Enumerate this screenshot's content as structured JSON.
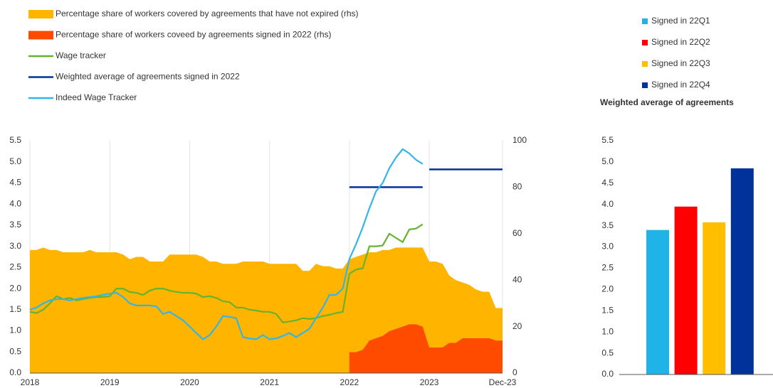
{
  "chart_data": [
    {
      "type": "line",
      "xlim": [
        2018,
        2023.917
      ],
      "xticks": [
        2018,
        2019,
        2020,
        2021,
        2022,
        2023,
        {
          "value": 2023.917,
          "label": "Dec-23"
        }
      ],
      "ylim": [
        0,
        5.5
      ],
      "yticks": [
        {
          "value": 0,
          "label": "0.0"
        },
        {
          "value": 0.5,
          "label": "0.5"
        },
        {
          "value": 1,
          "label": "1.0"
        },
        {
          "value": 1.5,
          "label": "1.5"
        },
        {
          "value": 2,
          "label": "2.0"
        },
        {
          "value": 2.5,
          "label": "2.5"
        },
        {
          "value": 3,
          "label": "3.0"
        },
        {
          "value": 3.5,
          "label": "3.5"
        },
        {
          "value": 4,
          "label": "4.0"
        },
        {
          "value": 4.5,
          "label": "4.5"
        },
        {
          "value": 5,
          "label": "5.0"
        },
        {
          "value": 5.5,
          "label": "5.5"
        }
      ],
      "y2lim": [
        0,
        100
      ],
      "y2ticks": [
        0,
        20,
        40,
        60,
        80,
        100
      ],
      "grid": "x",
      "x": [
        2018,
        2018.083,
        2018.167,
        2018.25,
        2018.333,
        2018.417,
        2018.5,
        2018.583,
        2018.667,
        2018.75,
        2018.833,
        2018.917,
        2019,
        2019.083,
        2019.167,
        2019.25,
        2019.333,
        2019.417,
        2019.5,
        2019.583,
        2019.667,
        2019.75,
        2019.833,
        2019.917,
        2020,
        2020.083,
        2020.167,
        2020.25,
        2020.333,
        2020.417,
        2020.5,
        2020.583,
        2020.667,
        2020.75,
        2020.833,
        2020.917,
        2021,
        2021.083,
        2021.167,
        2021.25,
        2021.333,
        2021.417,
        2021.5,
        2021.583,
        2021.667,
        2021.75,
        2021.833,
        2021.917,
        2022,
        2022.083,
        2022.167,
        2022.25,
        2022.333,
        2022.417,
        2022.5,
        2022.583,
        2022.667,
        2022.75,
        2022.833,
        2022.917,
        2023,
        2023.083,
        2023.167,
        2023.25,
        2023.333,
        2023.417,
        2023.5,
        2023.583,
        2023.667,
        2023.75,
        2023.833,
        2023.917
      ],
      "series": [
        {
          "name": "Percentage share of workers covered by agreements that have not expired (rhs)",
          "style": "area",
          "axis": "y2",
          "color": "#ffb400",
          "values": [
            53,
            53,
            54,
            53,
            53,
            52,
            52,
            52,
            52,
            53,
            52,
            52,
            52,
            52,
            51,
            49,
            50,
            50,
            48,
            48,
            48,
            51,
            51,
            51,
            51,
            51,
            50,
            48,
            48,
            47,
            47,
            47,
            48,
            48,
            48,
            48,
            47,
            47,
            47,
            47,
            47,
            44,
            44,
            47,
            46,
            46,
            45,
            45,
            49,
            50,
            51,
            52,
            52,
            53,
            53,
            54,
            54,
            54,
            54,
            54,
            48,
            48,
            47,
            42,
            40,
            39,
            38,
            36,
            35,
            35,
            28,
            28
          ]
        },
        {
          "name": "Percentage share of workers coveed by agreements signed in 2022 (rhs)",
          "style": "area",
          "axis": "y2",
          "color": "#ff4b00",
          "values": [
            null,
            null,
            null,
            null,
            null,
            null,
            null,
            null,
            null,
            null,
            null,
            null,
            null,
            null,
            null,
            null,
            null,
            null,
            null,
            null,
            null,
            null,
            null,
            null,
            null,
            null,
            null,
            null,
            null,
            null,
            null,
            null,
            null,
            null,
            null,
            null,
            null,
            null,
            null,
            null,
            null,
            null,
            null,
            null,
            null,
            null,
            null,
            null,
            9,
            9,
            10,
            14,
            15,
            16,
            18,
            19,
            20,
            21,
            21,
            20,
            11,
            11,
            11,
            13,
            13,
            15,
            15,
            15,
            15,
            15,
            14,
            14
          ]
        },
        {
          "name": "Wage tracker",
          "style": "line",
          "color": "#65b32e",
          "values": [
            1.45,
            1.42,
            1.5,
            1.65,
            1.82,
            1.75,
            1.78,
            1.72,
            1.75,
            1.78,
            1.8,
            1.8,
            1.82,
            2.0,
            2.0,
            1.92,
            1.9,
            1.85,
            1.95,
            2.0,
            2.0,
            1.95,
            1.92,
            1.9,
            1.9,
            1.88,
            1.8,
            1.82,
            1.78,
            1.7,
            1.68,
            1.55,
            1.55,
            1.5,
            1.48,
            1.45,
            1.45,
            1.4,
            1.2,
            1.22,
            1.25,
            1.3,
            1.28,
            1.3,
            1.35,
            1.38,
            1.42,
            1.45,
            2.35,
            2.45,
            2.48,
            3.0,
            3.0,
            3.02,
            3.3,
            3.2,
            3.1,
            3.4,
            3.42,
            3.52,
            null,
            null,
            null,
            null,
            null,
            null,
            null,
            null,
            null,
            null,
            null,
            null
          ]
        },
        {
          "name": "Weighted average of agreements signed in 2022",
          "style": "step",
          "color": "#003299",
          "x": [
            2022,
            2023
          ],
          "values": [
            4.4,
            4.82
          ]
        },
        {
          "name": "Indeed Wage Tracker",
          "style": "line",
          "color": "#34b5e8",
          "values": [
            1.5,
            1.55,
            1.65,
            1.72,
            1.75,
            1.75,
            1.72,
            1.75,
            1.78,
            1.8,
            1.82,
            1.85,
            1.88,
            1.9,
            1.8,
            1.65,
            1.6,
            1.6,
            1.6,
            1.58,
            1.4,
            1.45,
            1.35,
            1.25,
            1.1,
            0.95,
            0.8,
            0.9,
            1.1,
            1.35,
            1.33,
            1.3,
            0.85,
            0.82,
            0.8,
            0.9,
            0.8,
            0.82,
            0.88,
            0.95,
            0.85,
            0.95,
            1.05,
            1.3,
            1.55,
            1.85,
            1.85,
            2.0,
            2.7,
            3.05,
            3.45,
            3.9,
            4.3,
            4.5,
            4.85,
            5.1,
            5.3,
            5.2,
            5.05,
            4.95,
            null,
            null,
            null,
            null,
            null,
            null,
            null,
            null,
            null,
            null,
            null,
            null
          ]
        }
      ]
    },
    {
      "type": "bar",
      "title": "Weighted average of agreements",
      "ylim": [
        0,
        5.5
      ],
      "yticks": [
        {
          "value": 0,
          "label": "0.0"
        },
        {
          "value": 0.5,
          "label": "0.5"
        },
        {
          "value": 1,
          "label": "1.0"
        },
        {
          "value": 1.5,
          "label": "1.5"
        },
        {
          "value": 2,
          "label": "2.0"
        },
        {
          "value": 2.5,
          "label": "2.5"
        },
        {
          "value": 3,
          "label": "3.0"
        },
        {
          "value": 3.5,
          "label": "3.5"
        },
        {
          "value": 4,
          "label": "4.0"
        },
        {
          "value": 4.5,
          "label": "4.5"
        },
        {
          "value": 5,
          "label": "5.0"
        },
        {
          "value": 5.5,
          "label": "5.5"
        }
      ],
      "series": [
        {
          "name": "Signed in 22Q1",
          "color": "#1fb3e8",
          "values": [
            3.4
          ]
        },
        {
          "name": "Signed in 22Q2",
          "color": "#ff0000",
          "values": [
            3.95
          ]
        },
        {
          "name": "Signed in 22Q3",
          "color": "#ffbf00",
          "values": [
            3.58
          ]
        },
        {
          "name": "Signed in 22Q4",
          "color": "#003299",
          "values": [
            4.85
          ]
        }
      ]
    }
  ]
}
